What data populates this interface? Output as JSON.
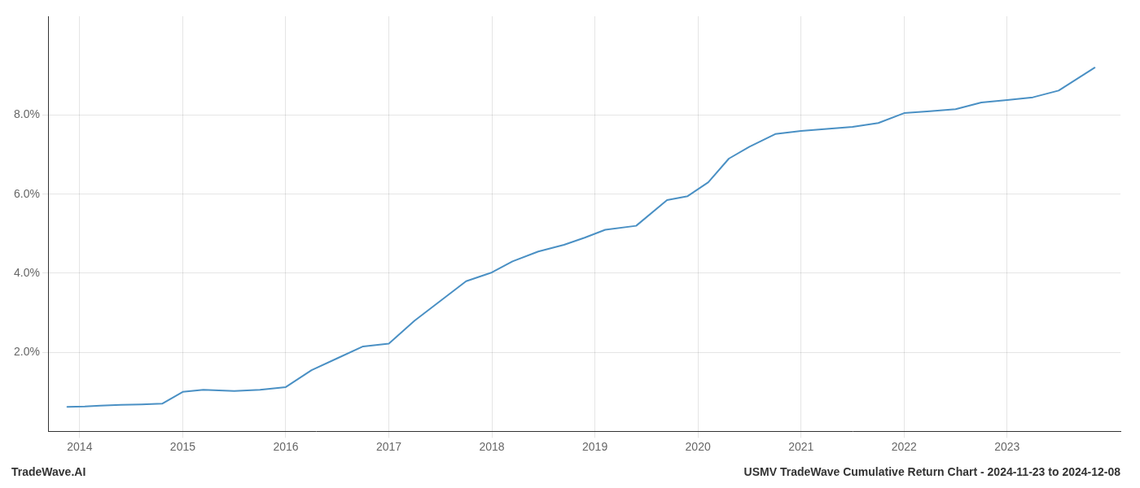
{
  "chart_data": {
    "type": "line",
    "title": "USMV TradeWave Cumulative Return Chart - 2024-11-23 to 2024-12-08",
    "annotations": [
      "TradeWave.AI"
    ],
    "x": [
      2013.88,
      2014.05,
      2014.2,
      2014.4,
      2014.6,
      2014.8,
      2015.0,
      2015.2,
      2015.5,
      2015.75,
      2016.0,
      2016.25,
      2016.5,
      2016.75,
      2017.0,
      2017.25,
      2017.5,
      2017.75,
      2018.0,
      2018.2,
      2018.45,
      2018.7,
      2018.9,
      2019.1,
      2019.4,
      2019.7,
      2019.9,
      2020.1,
      2020.3,
      2020.5,
      2020.75,
      2021.0,
      2021.25,
      2021.5,
      2021.75,
      2022.0,
      2022.25,
      2022.5,
      2022.75,
      2023.0,
      2023.25,
      2023.5,
      2023.85
    ],
    "values": [
      0.62,
      0.63,
      0.65,
      0.67,
      0.68,
      0.7,
      1.0,
      1.05,
      1.02,
      1.05,
      1.12,
      1.55,
      1.85,
      2.15,
      2.22,
      2.8,
      3.3,
      3.8,
      4.02,
      4.3,
      4.55,
      4.72,
      4.9,
      5.1,
      5.2,
      5.85,
      5.95,
      6.3,
      6.9,
      7.2,
      7.52,
      7.6,
      7.65,
      7.7,
      7.8,
      8.05,
      8.1,
      8.15,
      8.32,
      8.38,
      8.45,
      8.62,
      9.2
    ],
    "color": "#4A90C4",
    "xlim": [
      2013.7,
      2024.1
    ],
    "xticks": [
      2014,
      2015,
      2016,
      2017,
      2018,
      2019,
      2020,
      2021,
      2022,
      2023
    ],
    "ylim": [
      0,
      10.5
    ],
    "yticks": [
      {
        "value": 2.0,
        "label": "2.0%"
      },
      {
        "value": 4.0,
        "label": "4.0%"
      },
      {
        "value": 6.0,
        "label": "6.0%"
      },
      {
        "value": 8.0,
        "label": "8.0%"
      }
    ],
    "grid": true
  }
}
